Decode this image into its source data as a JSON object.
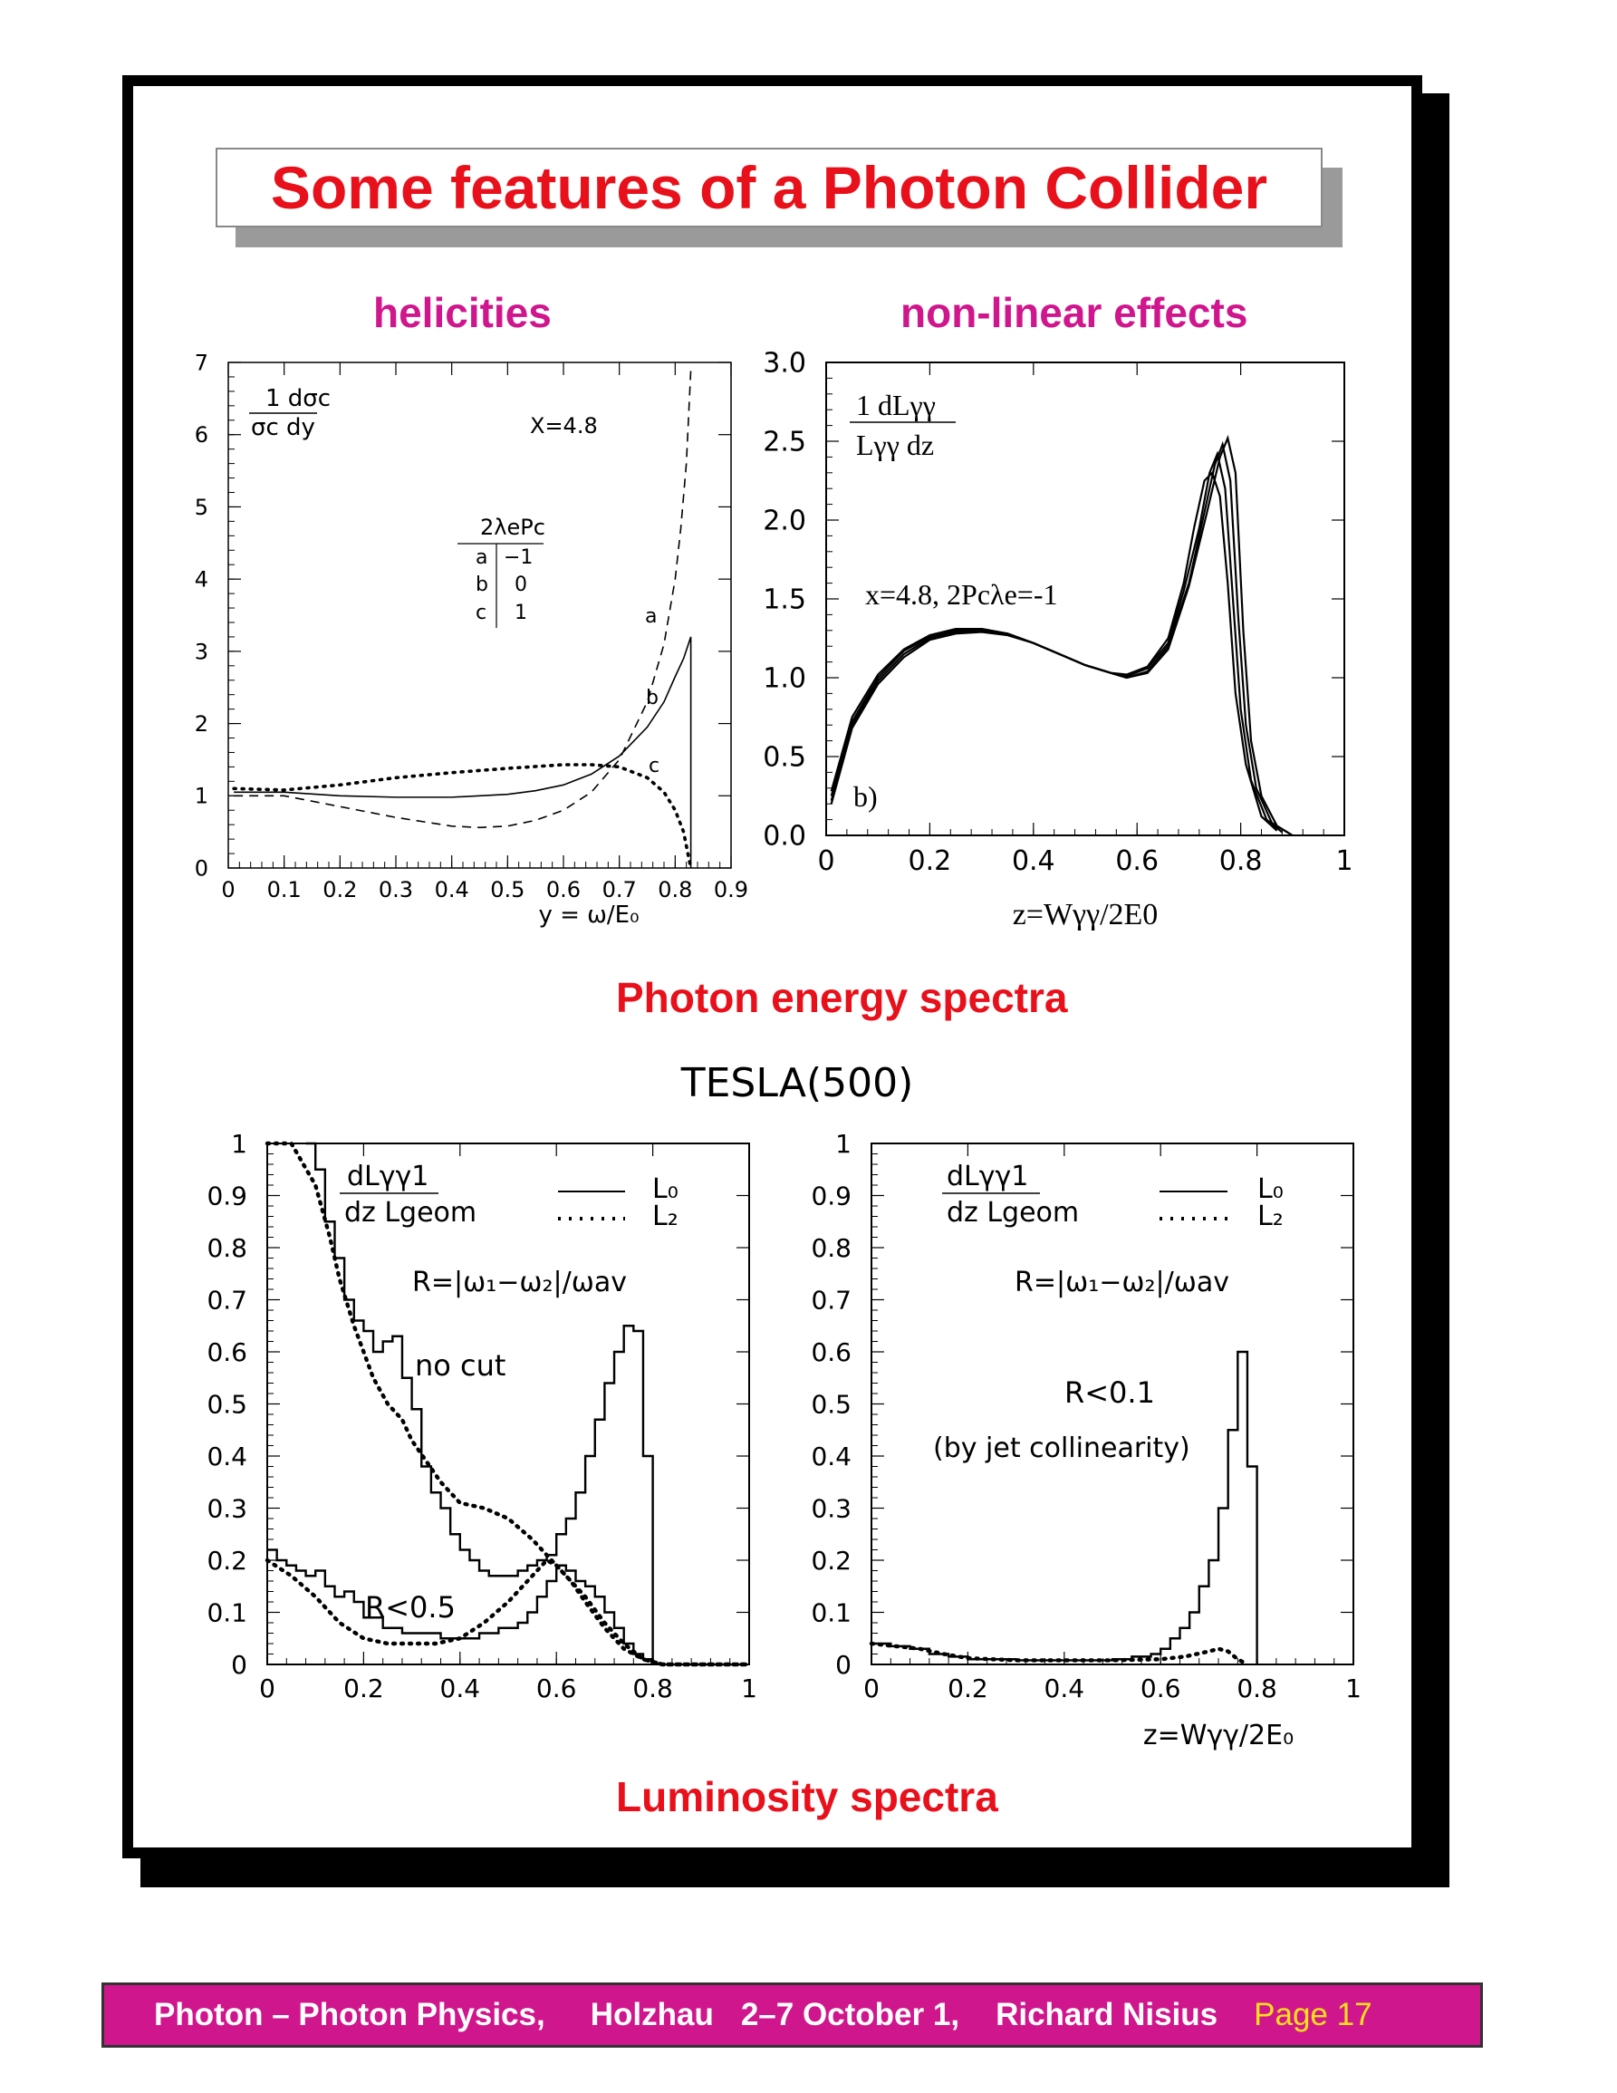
{
  "title": "Some features of a Photon Collider",
  "labels": {
    "helicities": "helicities",
    "nonlinear": "non-linear effects",
    "photon_spectra": "Photon energy spectra",
    "tesla": "TESLA(500)",
    "luminosity_spectra": "Luminosity spectra"
  },
  "footer": {
    "part1": "Photon – Photon Physics,",
    "part2": "Holzhau",
    "part3": "2–7 October 1,",
    "part4": "Richard Nisius",
    "page": "Page 17"
  },
  "colors": {
    "title_red": "#e8101a",
    "magenta": "#d0168c",
    "page_yellow": "#ffe01b"
  },
  "chart_data": [
    {
      "id": "helicities",
      "type": "line",
      "xlabel": "y = ω/E₀",
      "ylabel_top": "1  dσc",
      "ylabel_bottom": "σc dy",
      "xlim": [
        0,
        0.9
      ],
      "ylim": [
        0,
        7
      ],
      "xticks": [
        "0",
        "0.1",
        "0.2",
        "0.3",
        "0.4",
        "0.5",
        "0.6",
        "0.7",
        "0.8",
        "0.9"
      ],
      "yticks": [
        "0",
        "1",
        "2",
        "3",
        "4",
        "5",
        "6",
        "7"
      ],
      "annotations": {
        "x_param": "X=4.8",
        "table_header": "2λePc",
        "rows": [
          [
            "a",
            "−1"
          ],
          [
            "b",
            "0"
          ],
          [
            "c",
            "1"
          ]
        ]
      },
      "series": [
        {
          "name": "a",
          "style": "dashed",
          "x": [
            0.01,
            0.1,
            0.2,
            0.3,
            0.4,
            0.45,
            0.5,
            0.55,
            0.6,
            0.65,
            0.7,
            0.75,
            0.78,
            0.8,
            0.81,
            0.82,
            0.828
          ],
          "y": [
            1.0,
            1.0,
            0.85,
            0.7,
            0.58,
            0.56,
            0.58,
            0.66,
            0.8,
            1.05,
            1.5,
            2.3,
            3.1,
            4.0,
            4.7,
            5.6,
            6.9
          ]
        },
        {
          "name": "b",
          "style": "solid",
          "x": [
            0.01,
            0.1,
            0.2,
            0.3,
            0.4,
            0.5,
            0.55,
            0.6,
            0.65,
            0.7,
            0.75,
            0.78,
            0.8,
            0.815,
            0.828,
            0.828
          ],
          "y": [
            1.05,
            1.05,
            1.0,
            0.98,
            0.98,
            1.02,
            1.07,
            1.15,
            1.3,
            1.55,
            1.95,
            2.3,
            2.65,
            2.9,
            3.2,
            0
          ]
        },
        {
          "name": "c",
          "style": "dotted",
          "x": [
            0.01,
            0.1,
            0.2,
            0.3,
            0.4,
            0.5,
            0.6,
            0.65,
            0.7,
            0.75,
            0.78,
            0.8,
            0.815,
            0.828
          ],
          "y": [
            1.1,
            1.08,
            1.15,
            1.25,
            1.32,
            1.38,
            1.43,
            1.43,
            1.4,
            1.25,
            1.05,
            0.8,
            0.5,
            0.0
          ]
        }
      ]
    },
    {
      "id": "nonlinear",
      "type": "line",
      "xlabel": "z=Wγγ/2E0",
      "ylabel_top": "1  dLγγ",
      "ylabel_bottom": "Lγγ dz",
      "xlim": [
        0,
        1
      ],
      "ylim": [
        0,
        3
      ],
      "xticks": [
        "0",
        "0.2",
        "0.4",
        "0.6",
        "0.8",
        "1"
      ],
      "yticks": [
        "0.0",
        "0.5",
        "1.0",
        "1.5",
        "2.0",
        "2.5",
        "3.0"
      ],
      "annotations": {
        "params": "x=4.8, 2Pcλe=-1",
        "panel": "b)"
      },
      "series": [
        {
          "x": [
            0.01,
            0.05,
            0.1,
            0.15,
            0.2,
            0.25,
            0.3,
            0.35,
            0.4,
            0.45,
            0.5,
            0.55,
            0.58,
            0.62,
            0.66,
            0.69,
            0.71,
            0.73,
            0.745,
            0.76,
            0.775,
            0.79,
            0.81,
            0.84,
            0.87
          ],
          "y": [
            0.28,
            0.75,
            1.02,
            1.18,
            1.27,
            1.31,
            1.31,
            1.28,
            1.22,
            1.15,
            1.08,
            1.03,
            1.02,
            1.07,
            1.25,
            1.6,
            1.95,
            2.25,
            2.3,
            2.15,
            1.6,
            0.9,
            0.45,
            0.12,
            0.03
          ]
        },
        {
          "x": [
            0.01,
            0.05,
            0.1,
            0.15,
            0.2,
            0.25,
            0.3,
            0.35,
            0.4,
            0.45,
            0.5,
            0.55,
            0.58,
            0.62,
            0.66,
            0.69,
            0.72,
            0.74,
            0.755,
            0.77,
            0.785,
            0.8,
            0.82,
            0.85,
            0.88
          ],
          "y": [
            0.25,
            0.72,
            1.0,
            1.17,
            1.26,
            1.3,
            1.31,
            1.28,
            1.22,
            1.15,
            1.08,
            1.03,
            1.01,
            1.06,
            1.22,
            1.55,
            1.95,
            2.3,
            2.42,
            2.2,
            1.5,
            0.8,
            0.35,
            0.1,
            0.02
          ]
        },
        {
          "x": [
            0.01,
            0.05,
            0.1,
            0.15,
            0.2,
            0.25,
            0.3,
            0.35,
            0.4,
            0.45,
            0.5,
            0.55,
            0.58,
            0.62,
            0.66,
            0.7,
            0.73,
            0.75,
            0.765,
            0.78,
            0.795,
            0.81,
            0.83,
            0.86,
            0.89
          ],
          "y": [
            0.22,
            0.7,
            0.98,
            1.15,
            1.25,
            1.29,
            1.3,
            1.28,
            1.22,
            1.15,
            1.08,
            1.03,
            1.0,
            1.04,
            1.2,
            1.6,
            2.05,
            2.35,
            2.48,
            2.25,
            1.4,
            0.7,
            0.3,
            0.08,
            0.02
          ]
        },
        {
          "x": [
            0.01,
            0.05,
            0.1,
            0.15,
            0.2,
            0.25,
            0.3,
            0.35,
            0.4,
            0.45,
            0.5,
            0.55,
            0.58,
            0.62,
            0.66,
            0.7,
            0.735,
            0.76,
            0.775,
            0.79,
            0.805,
            0.82,
            0.84,
            0.87,
            0.9
          ],
          "y": [
            0.2,
            0.68,
            0.96,
            1.13,
            1.24,
            1.28,
            1.29,
            1.27,
            1.22,
            1.15,
            1.08,
            1.03,
            1.0,
            1.03,
            1.18,
            1.58,
            2.05,
            2.4,
            2.52,
            2.3,
            1.3,
            0.6,
            0.25,
            0.06,
            0.0
          ]
        }
      ]
    },
    {
      "id": "lumi_nocut",
      "type": "line",
      "xlim": [
        0,
        1
      ],
      "ylim": [
        0,
        1
      ],
      "xticks": [
        "0",
        "0.2",
        "0.4",
        "0.6",
        "0.8",
        "1"
      ],
      "yticks": [
        "0",
        "0.1",
        "0.2",
        "0.3",
        "0.4",
        "0.5",
        "0.6",
        "0.7",
        "0.8",
        "0.9",
        "1"
      ],
      "annotations": {
        "ylabel_top": "dLγγ1",
        "ylabel_bottom": "dz  Lgeom",
        "legend_L0": "L₀",
        "legend_L2": "L₂",
        "r_def": "R=|ω₁−ω₂|/ωav",
        "nocut": "no cut",
        "rcut": "R<0.5"
      },
      "series": [
        {
          "name": "L₀",
          "style": "solid",
          "x": [
            0.08,
            0.1,
            0.12,
            0.14,
            0.16,
            0.18,
            0.2,
            0.22,
            0.24,
            0.26,
            0.28,
            0.3,
            0.32,
            0.34,
            0.36,
            0.38,
            0.4,
            0.42,
            0.44,
            0.46,
            0.48,
            0.5,
            0.52,
            0.54,
            0.56,
            0.58,
            0.6,
            0.62,
            0.64,
            0.66,
            0.68,
            0.7,
            0.72,
            0.74,
            0.76,
            0.78,
            0.8
          ],
          "y": [
            1.0,
            0.95,
            0.85,
            0.78,
            0.7,
            0.66,
            0.64,
            0.6,
            0.62,
            0.63,
            0.55,
            0.49,
            0.38,
            0.33,
            0.3,
            0.25,
            0.22,
            0.2,
            0.18,
            0.17,
            0.17,
            0.17,
            0.18,
            0.19,
            0.2,
            0.21,
            0.25,
            0.28,
            0.33,
            0.4,
            0.47,
            0.54,
            0.6,
            0.65,
            0.64,
            0.4,
            0.0
          ]
        },
        {
          "name": "L₀ R<0.5",
          "style": "solid",
          "x": [
            0.0,
            0.02,
            0.04,
            0.06,
            0.08,
            0.1,
            0.12,
            0.14,
            0.16,
            0.18,
            0.2,
            0.24,
            0.28,
            0.32,
            0.36,
            0.4,
            0.44,
            0.48,
            0.52,
            0.54,
            0.56,
            0.58,
            0.6,
            0.62,
            0.64,
            0.66,
            0.68,
            0.7,
            0.72,
            0.74,
            0.76,
            0.78,
            0.8
          ],
          "y": [
            0.22,
            0.2,
            0.19,
            0.18,
            0.17,
            0.18,
            0.15,
            0.13,
            0.14,
            0.12,
            0.09,
            0.07,
            0.06,
            0.06,
            0.05,
            0.05,
            0.06,
            0.07,
            0.08,
            0.1,
            0.13,
            0.16,
            0.19,
            0.18,
            0.16,
            0.15,
            0.13,
            0.1,
            0.07,
            0.04,
            0.02,
            0.01,
            0.0
          ]
        },
        {
          "name": "L₂",
          "style": "dotted",
          "x": [
            0.0,
            0.05,
            0.1,
            0.13,
            0.15,
            0.18,
            0.2,
            0.22,
            0.25,
            0.28,
            0.3,
            0.33,
            0.36,
            0.4,
            0.45,
            0.5,
            0.55,
            0.58,
            0.6,
            0.63,
            0.66,
            0.7,
            0.74,
            0.78,
            0.82,
            0.9,
            1.0
          ],
          "y": [
            1.0,
            1.0,
            0.92,
            0.82,
            0.74,
            0.65,
            0.6,
            0.55,
            0.5,
            0.47,
            0.43,
            0.39,
            0.35,
            0.31,
            0.3,
            0.28,
            0.24,
            0.21,
            0.19,
            0.16,
            0.13,
            0.08,
            0.04,
            0.01,
            0.0,
            0.0,
            0.0
          ]
        },
        {
          "name": "L₂ R<0.5",
          "style": "dotted",
          "x": [
            0.0,
            0.05,
            0.1,
            0.15,
            0.2,
            0.25,
            0.3,
            0.35,
            0.4,
            0.45,
            0.5,
            0.55,
            0.58,
            0.6,
            0.63,
            0.66,
            0.7,
            0.74,
            0.78,
            0.82,
            0.9,
            1.0
          ],
          "y": [
            0.2,
            0.17,
            0.13,
            0.08,
            0.05,
            0.04,
            0.04,
            0.04,
            0.05,
            0.08,
            0.12,
            0.17,
            0.2,
            0.19,
            0.16,
            0.12,
            0.07,
            0.03,
            0.01,
            0.0,
            0.0,
            0.0
          ]
        }
      ]
    },
    {
      "id": "lumi_rcut",
      "type": "line",
      "xlabel": "z=Wγγ/2E₀",
      "xlim": [
        0,
        1
      ],
      "ylim": [
        0,
        1
      ],
      "xticks": [
        "0",
        "0.2",
        "0.4",
        "0.6",
        "0.8",
        "1"
      ],
      "yticks": [
        "0",
        "0.1",
        "0.2",
        "0.3",
        "0.4",
        "0.5",
        "0.6",
        "0.7",
        "0.8",
        "0.9",
        "1"
      ],
      "annotations": {
        "ylabel_top": "dLγγ1",
        "ylabel_bottom": "dz  Lgeom",
        "legend_L0": "L₀",
        "legend_L2": "L₂",
        "r_def": "R=|ω₁−ω₂|/ωav",
        "rcut": "R<0.1",
        "rcut_note": "(by jet collinearity)"
      },
      "series": [
        {
          "name": "L₀",
          "style": "solid",
          "x": [
            0.0,
            0.04,
            0.08,
            0.12,
            0.16,
            0.2,
            0.3,
            0.4,
            0.5,
            0.54,
            0.58,
            0.6,
            0.62,
            0.64,
            0.66,
            0.68,
            0.7,
            0.72,
            0.74,
            0.76,
            0.78,
            0.8
          ],
          "y": [
            0.04,
            0.035,
            0.03,
            0.02,
            0.015,
            0.01,
            0.008,
            0.008,
            0.01,
            0.015,
            0.02,
            0.03,
            0.05,
            0.07,
            0.1,
            0.15,
            0.2,
            0.3,
            0.45,
            0.6,
            0.38,
            0.0
          ]
        },
        {
          "name": "L₂",
          "style": "dotted",
          "x": [
            0.0,
            0.05,
            0.1,
            0.15,
            0.2,
            0.3,
            0.4,
            0.5,
            0.6,
            0.65,
            0.7,
            0.72,
            0.74,
            0.76,
            0.78
          ],
          "y": [
            0.04,
            0.035,
            0.03,
            0.02,
            0.012,
            0.008,
            0.008,
            0.008,
            0.01,
            0.015,
            0.025,
            0.03,
            0.025,
            0.01,
            0.0
          ]
        }
      ]
    }
  ]
}
